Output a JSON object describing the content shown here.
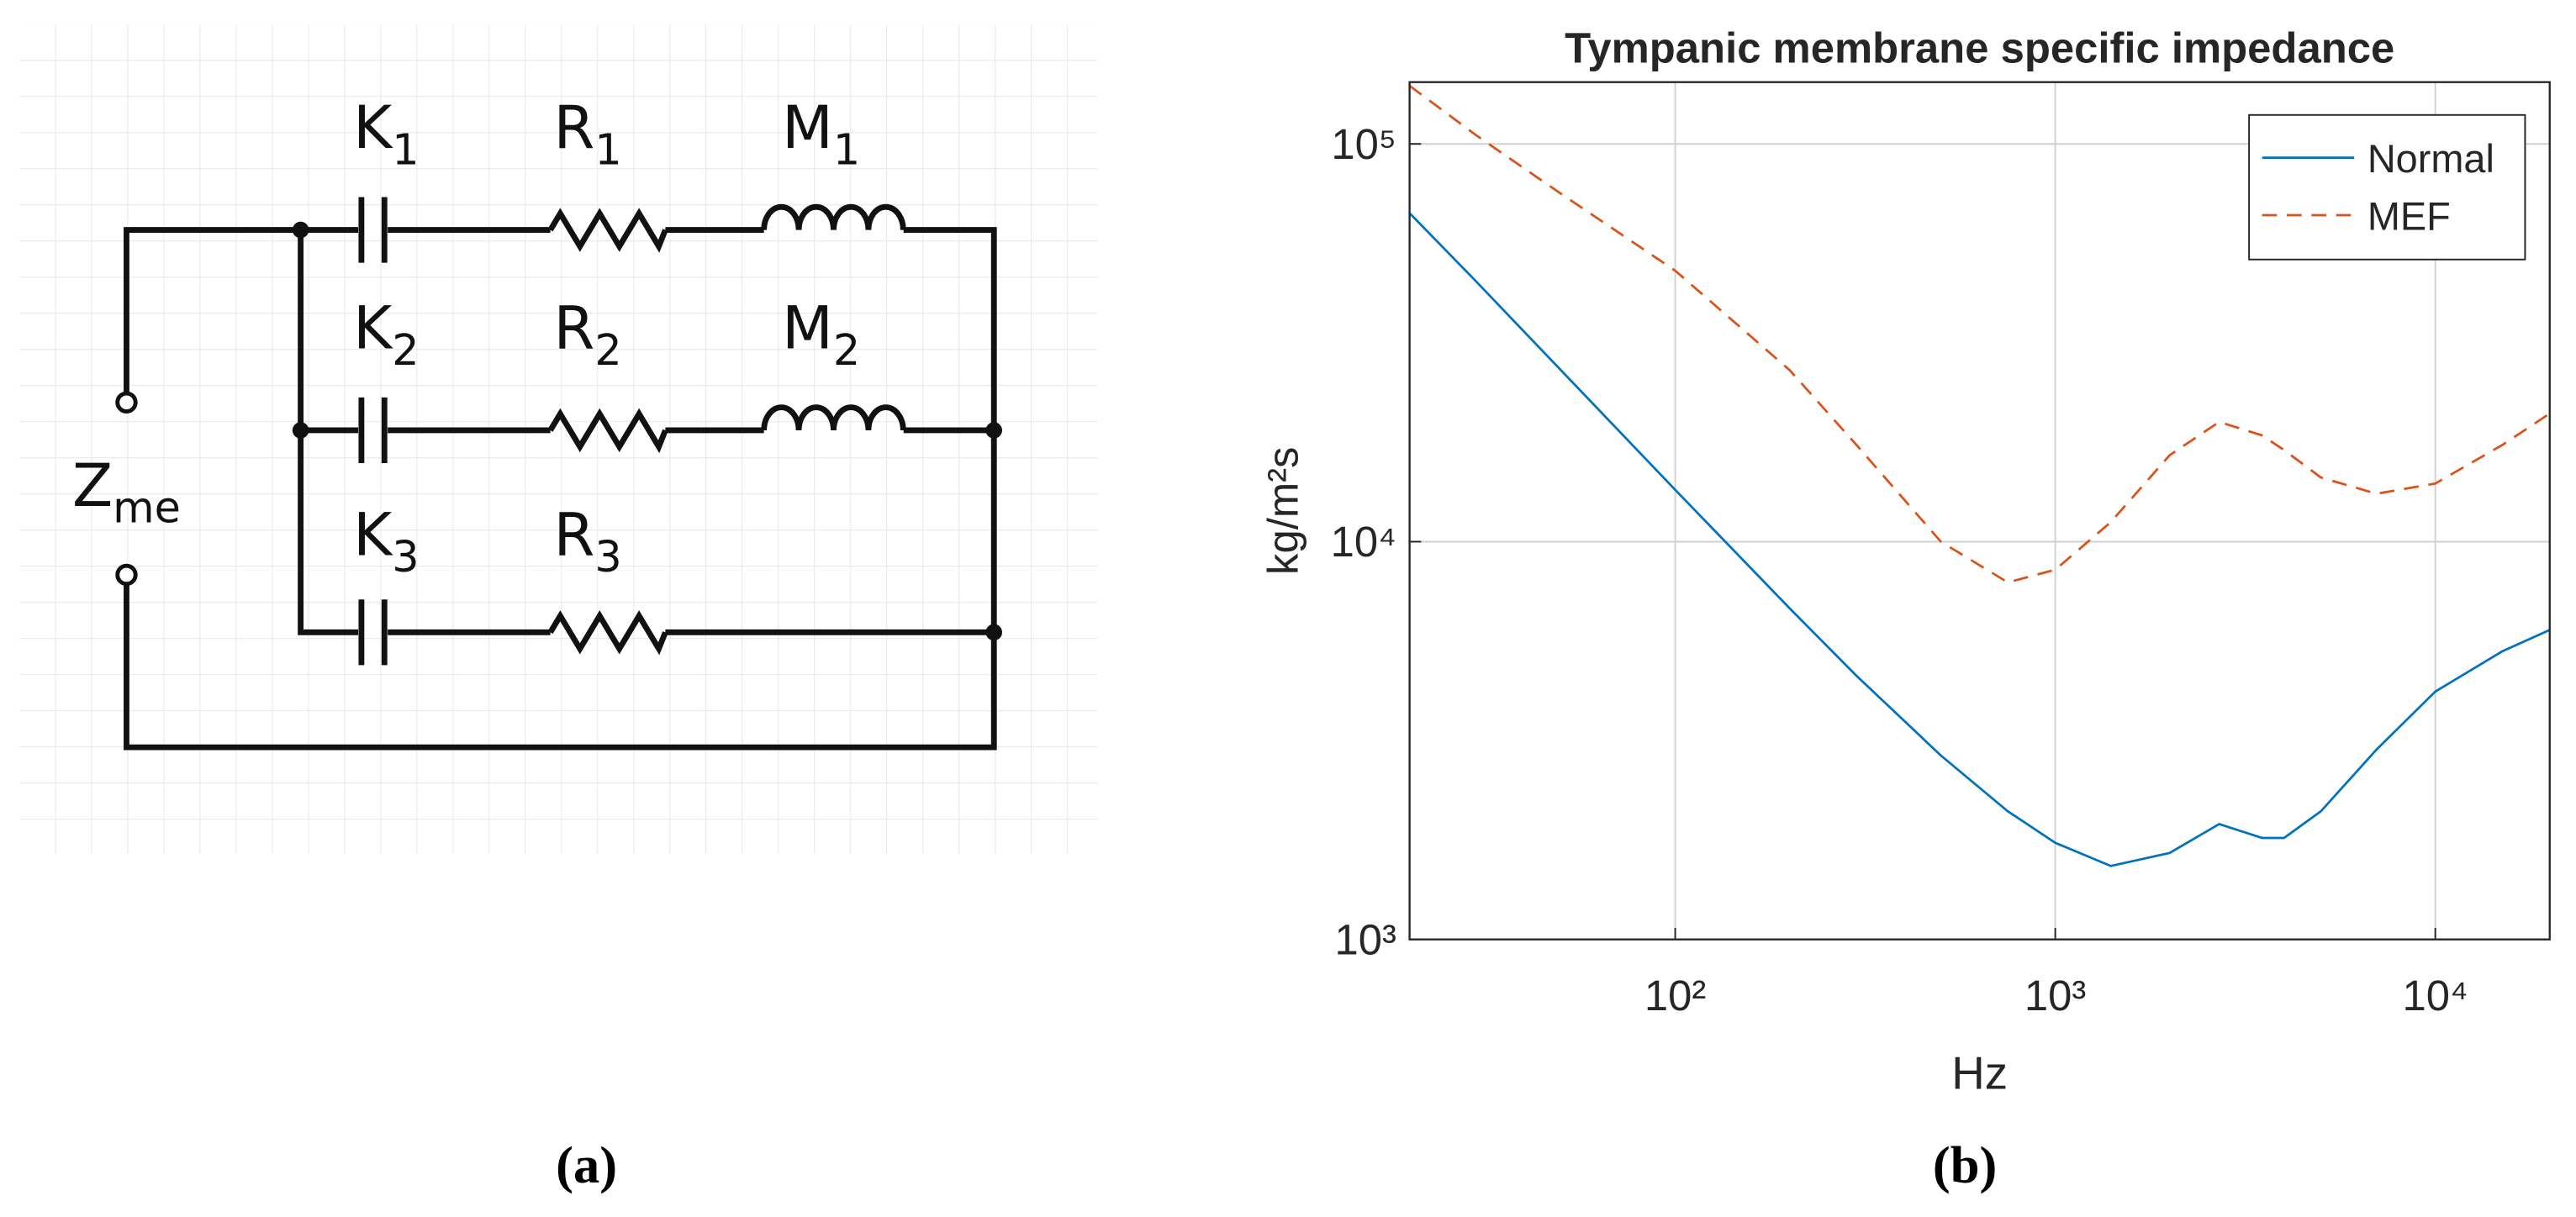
{
  "circuit": {
    "labels": [
      {
        "main": "K",
        "sub": "1"
      },
      {
        "main": "R",
        "sub": "1"
      },
      {
        "main": "M",
        "sub": "1"
      },
      {
        "main": "K",
        "sub": "2"
      },
      {
        "main": "R",
        "sub": "2"
      },
      {
        "main": "M",
        "sub": "2"
      },
      {
        "main": "K",
        "sub": "3"
      },
      {
        "main": "R",
        "sub": "3"
      }
    ],
    "port": {
      "main": "Z",
      "sub": "me"
    }
  },
  "captions": [
    "(a)",
    "(b)"
  ],
  "chart_data": {
    "type": "line",
    "title": "Tympanic membrane specific impedance",
    "x_label": "Hz",
    "y_label": "kg/m²s",
    "log_x": true,
    "log_y": true,
    "grid": true,
    "legend": "top-right",
    "x": [
      20,
      30,
      50,
      100,
      200,
      300,
      500,
      750,
      1000,
      1400,
      2000,
      2700,
      3500,
      4000,
      5000,
      7000,
      10000,
      15000,
      20000
    ],
    "series": [
      {
        "name": "Normal",
        "color": "#0072bd",
        "linestyle": "solid",
        "values": [
          67000,
          45000,
          27000,
          13500,
          6800,
          4600,
          2900,
          2100,
          1750,
          1530,
          1650,
          1950,
          1800,
          1800,
          2100,
          3000,
          4200,
          5300,
          6000
        ]
      },
      {
        "name": "MEF",
        "color": "#d95319",
        "linestyle": "dashed",
        "values": [
          140000,
          105000,
          75000,
          48000,
          27000,
          17500,
          10000,
          7900,
          8500,
          11200,
          16500,
          20000,
          18500,
          17000,
          14500,
          13200,
          14000,
          17500,
          21000
        ]
      }
    ],
    "xlim": [
      20,
      20000
    ],
    "ylim": [
      1000,
      143000
    ],
    "xticks": [
      {
        "value": 100,
        "label": "10²"
      },
      {
        "value": 1000,
        "label": "10³"
      },
      {
        "value": 10000,
        "label": "10⁴"
      }
    ],
    "yticks": [
      {
        "value": 1000,
        "label": "10³"
      },
      {
        "value": 10000,
        "label": "10⁴"
      },
      {
        "value": 100000,
        "label": "10⁵"
      }
    ]
  }
}
